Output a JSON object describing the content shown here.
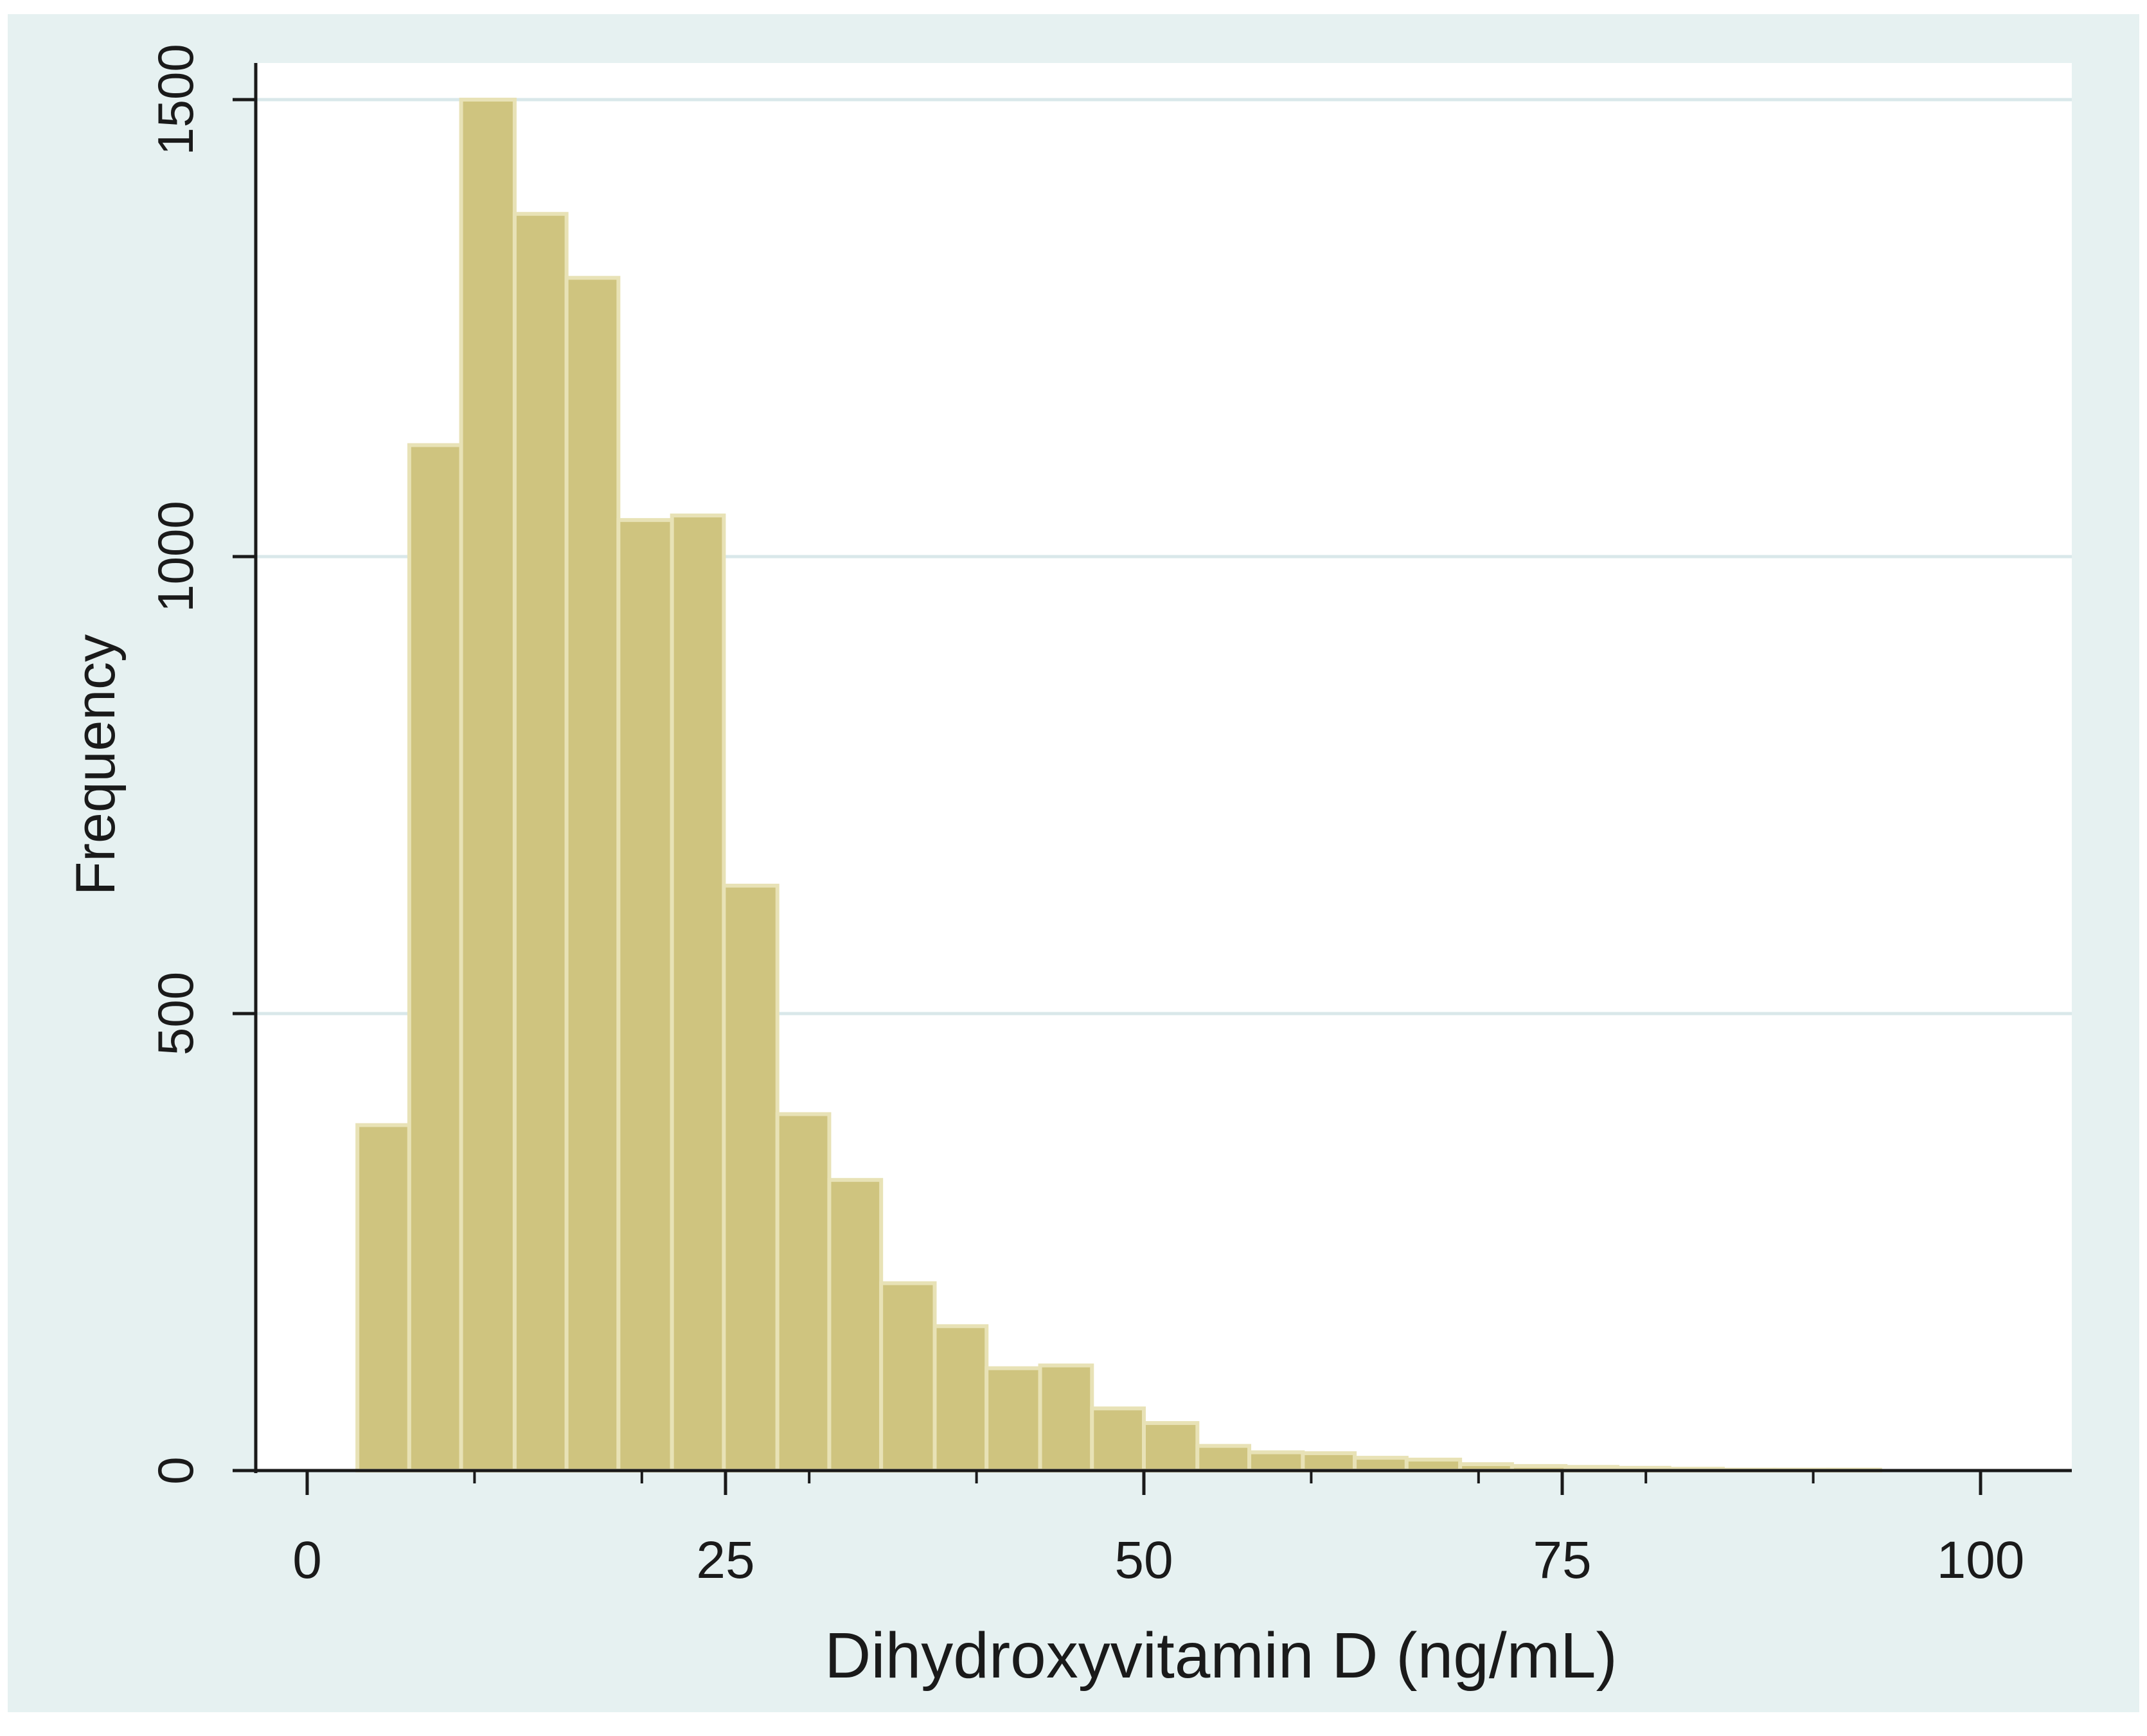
{
  "colors": {
    "outer_background": "#e6f1f1",
    "plot_background": "#ffffff",
    "bar_fill": "#cfc47f",
    "bar_edge": "#e8e2b6",
    "gridline": "#d9e8ea",
    "axis": "#1a1a1a"
  },
  "chart_data": {
    "type": "bar",
    "subtype": "histogram",
    "xlabel": "Dihydroxyvitamin D (ng/mL)",
    "ylabel": "Frequency",
    "xlim": [
      -5,
      105
    ],
    "ylim": [
      0,
      1500
    ],
    "x_ticks": [
      0,
      25,
      50,
      75,
      100
    ],
    "x_tick_labels": [
      "0",
      "25",
      "50",
      "75",
      "100"
    ],
    "y_ticks": [
      0,
      500,
      1000,
      1500
    ],
    "y_tick_labels": [
      "0",
      "500",
      "1000",
      "1500"
    ],
    "x_minor_ticks": [
      10,
      20,
      30,
      40,
      60,
      70,
      80,
      90
    ],
    "grid": "horizontal",
    "bin_width": 3.14,
    "bins": [
      {
        "x0": 3.0,
        "x1": 6.1,
        "count": 378
      },
      {
        "x0": 6.1,
        "x1": 9.2,
        "count": 1122
      },
      {
        "x0": 9.2,
        "x1": 12.4,
        "count": 1500
      },
      {
        "x0": 12.4,
        "x1": 15.5,
        "count": 1375
      },
      {
        "x0": 15.5,
        "x1": 18.6,
        "count": 1305
      },
      {
        "x0": 18.6,
        "x1": 21.8,
        "count": 1040
      },
      {
        "x0": 21.8,
        "x1": 24.9,
        "count": 1045
      },
      {
        "x0": 24.9,
        "x1": 28.1,
        "count": 640
      },
      {
        "x0": 28.1,
        "x1": 31.2,
        "count": 390
      },
      {
        "x0": 31.2,
        "x1": 34.3,
        "count": 318
      },
      {
        "x0": 34.3,
        "x1": 37.5,
        "count": 205
      },
      {
        "x0": 37.5,
        "x1": 40.6,
        "count": 158
      },
      {
        "x0": 40.6,
        "x1": 43.8,
        "count": 112
      },
      {
        "x0": 43.8,
        "x1": 46.9,
        "count": 115
      },
      {
        "x0": 46.9,
        "x1": 50.0,
        "count": 68
      },
      {
        "x0": 50.0,
        "x1": 53.2,
        "count": 52
      },
      {
        "x0": 53.2,
        "x1": 56.3,
        "count": 27
      },
      {
        "x0": 56.3,
        "x1": 59.5,
        "count": 20
      },
      {
        "x0": 59.5,
        "x1": 62.6,
        "count": 19
      },
      {
        "x0": 62.6,
        "x1": 65.7,
        "count": 14
      },
      {
        "x0": 65.7,
        "x1": 68.9,
        "count": 12
      },
      {
        "x0": 68.9,
        "x1": 72.0,
        "count": 7
      },
      {
        "x0": 72.0,
        "x1": 75.2,
        "count": 5
      },
      {
        "x0": 75.2,
        "x1": 78.3,
        "count": 4
      },
      {
        "x0": 78.3,
        "x1": 81.4,
        "count": 3
      },
      {
        "x0": 81.4,
        "x1": 84.6,
        "count": 2
      },
      {
        "x0": 84.6,
        "x1": 87.7,
        "count": 1
      },
      {
        "x0": 87.7,
        "x1": 90.9,
        "count": 1
      },
      {
        "x0": 90.9,
        "x1": 94.0,
        "count": 1
      }
    ]
  }
}
